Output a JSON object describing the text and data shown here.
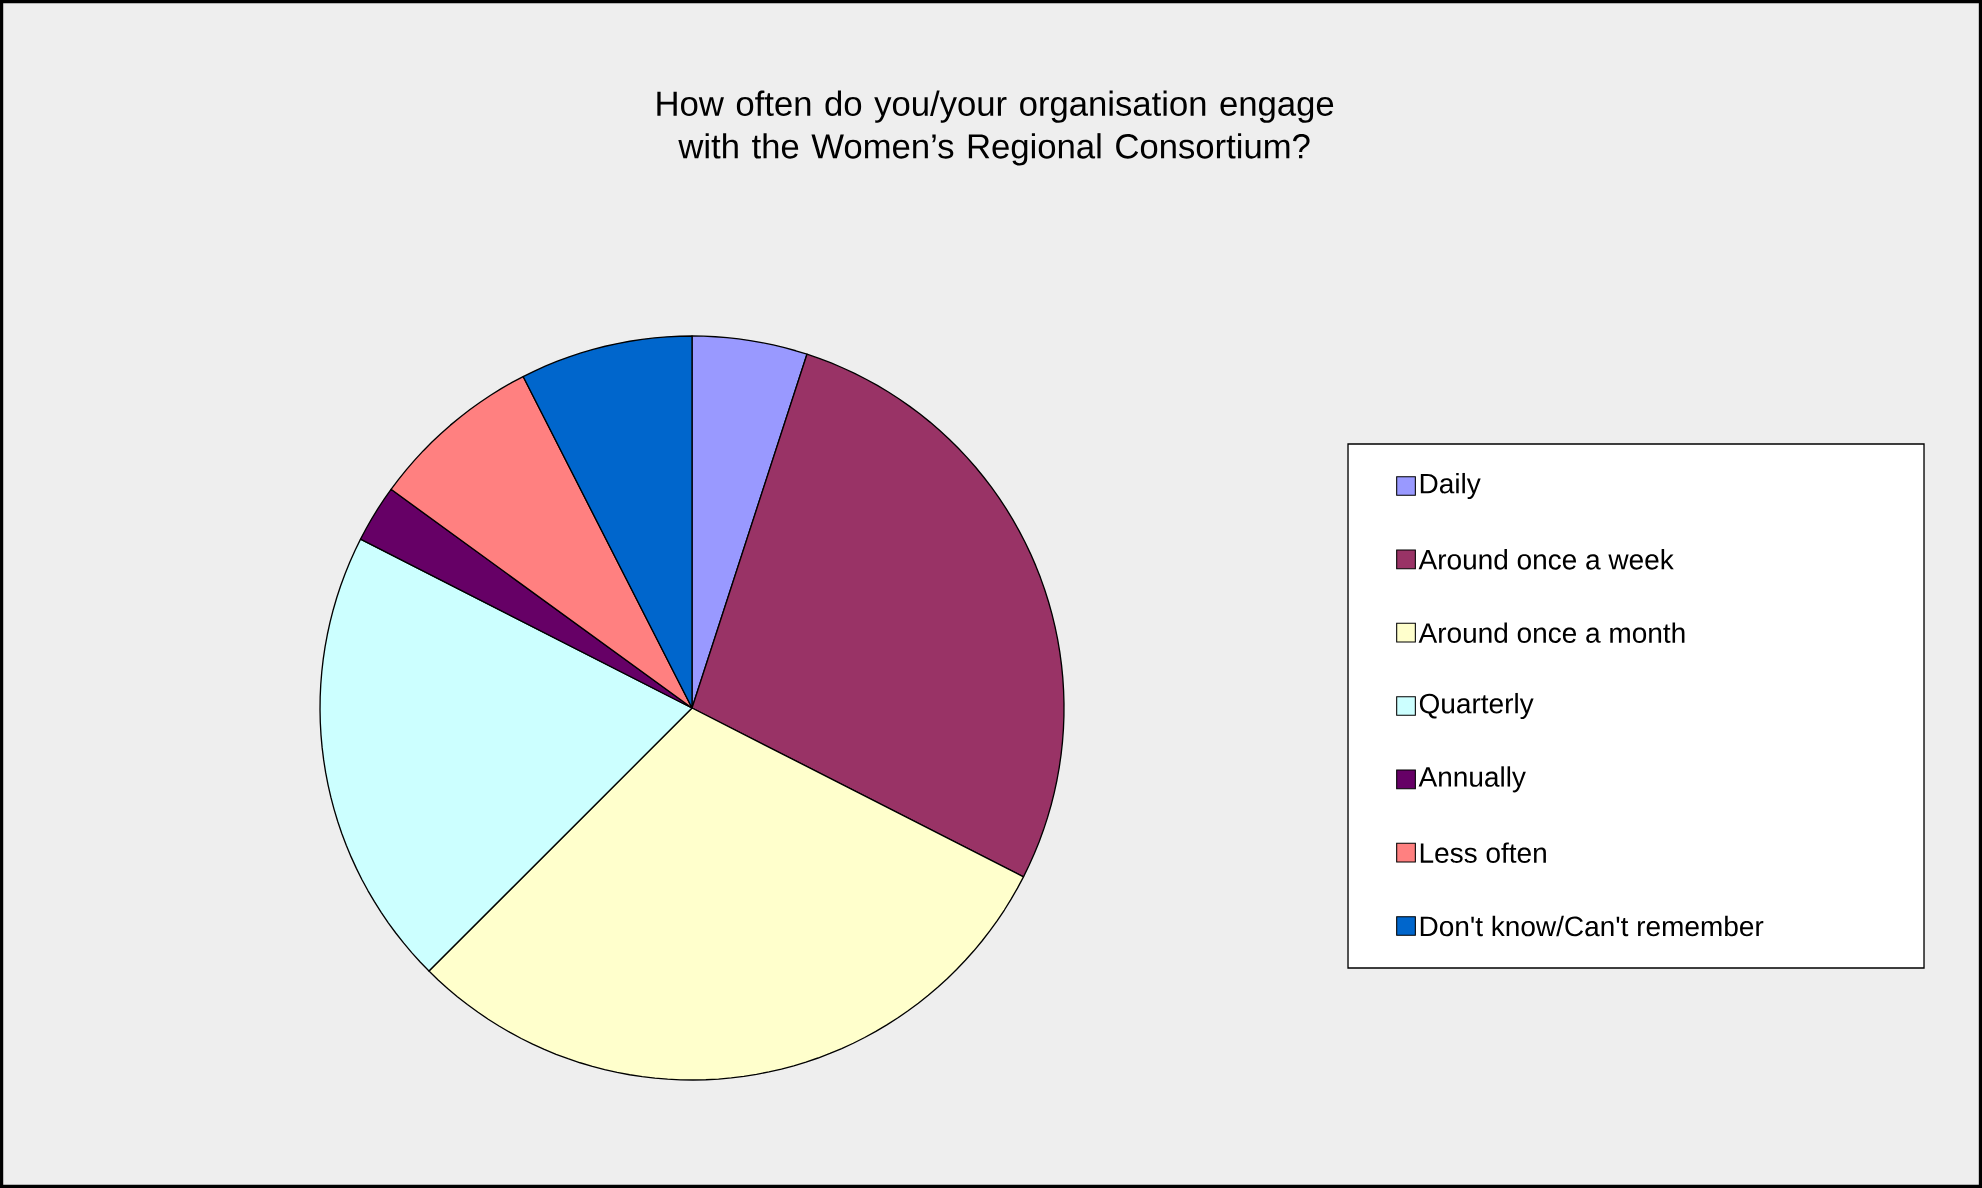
{
  "chart_data": {
    "type": "pie",
    "title": "How often do you/your organisation engage with the Women’s Regional Consortium?",
    "categories": [
      "Daily",
      "Around once a week",
      "Around once a month",
      "Quarterly",
      "Annually",
      "Less often",
      "Don't know/Can't remember"
    ],
    "values": [
      5,
      27.5,
      30,
      20,
      2.5,
      7.5,
      7.5
    ],
    "colors": [
      "#9999ff",
      "#993366",
      "#ffffcc",
      "#ccffff",
      "#660066",
      "#ff8080",
      "#0066cc"
    ],
    "legend": "right"
  }
}
